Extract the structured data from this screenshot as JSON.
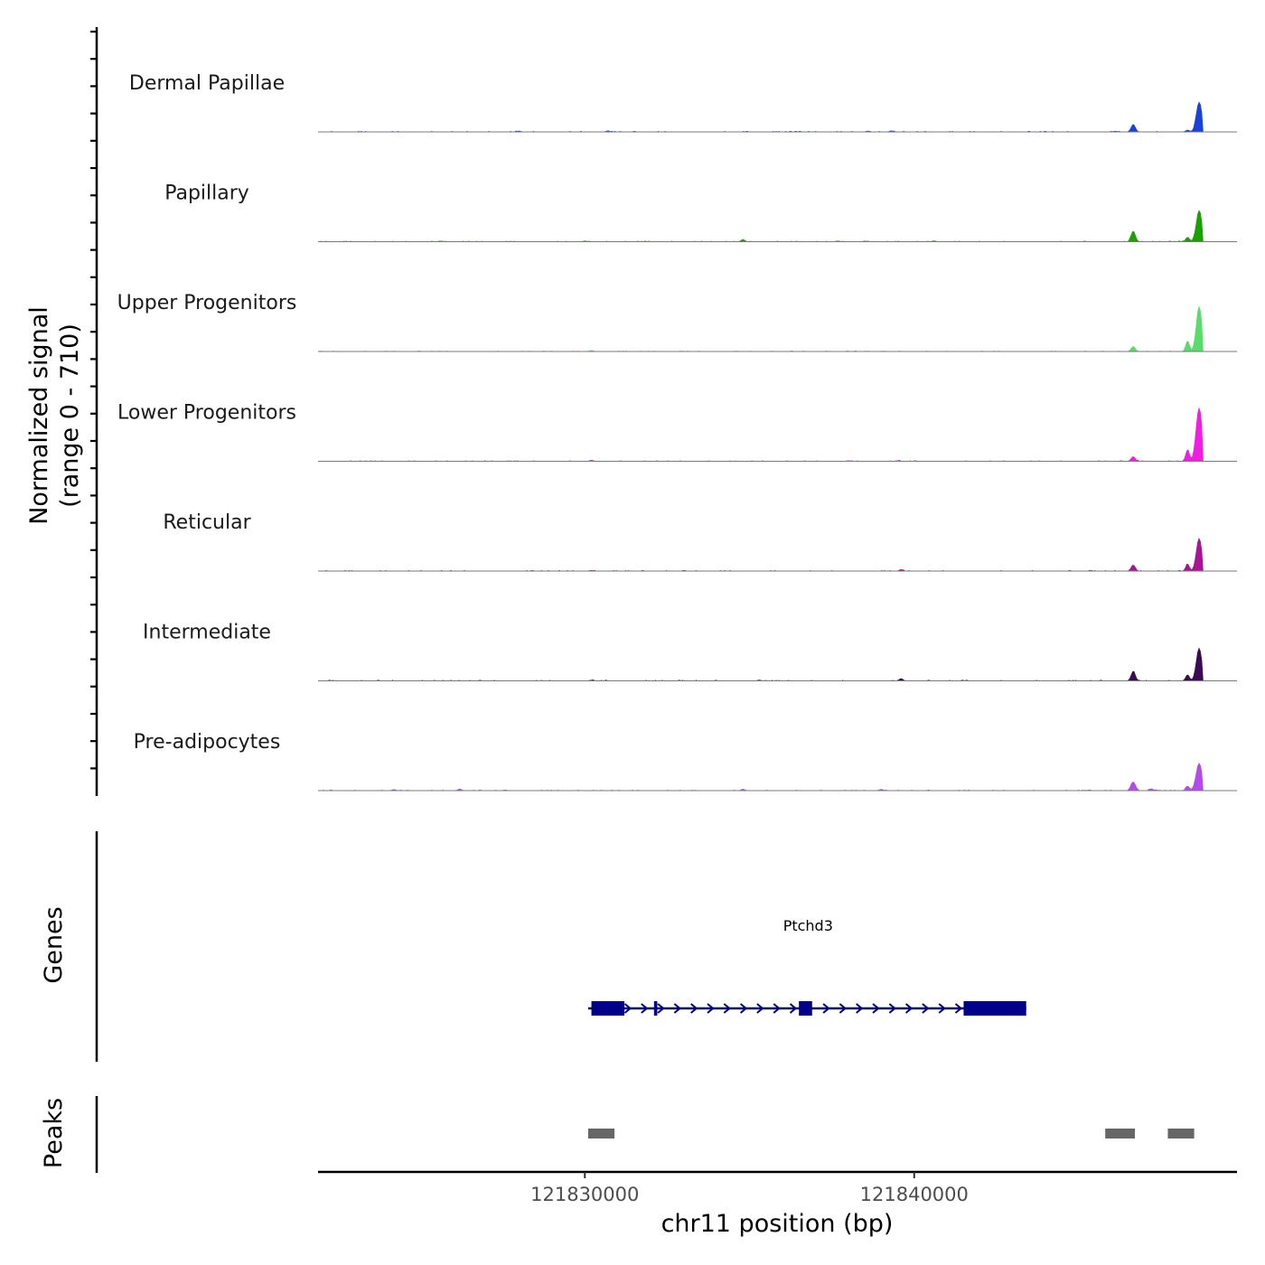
{
  "chart_data": {
    "type": "area",
    "chromosome": "chr11",
    "region": [
      121821900,
      121849800
    ],
    "xlabel": "chr11 position (bp)",
    "ylabel": "Normalized signal",
    "ylabel_range": "(range 0 - 710)",
    "ylim": [
      0,
      710
    ],
    "x_ticks": [
      {
        "value": 121830000,
        "label": "121830000"
      },
      {
        "value": 121840000,
        "label": "121840000"
      }
    ],
    "tracks": [
      {
        "name": "Dermal Papillae",
        "color": "#1742db",
        "peaks": [
          [
            121846650,
            100,
            90
          ],
          [
            121848650,
            390,
            120
          ]
        ],
        "bumps": [
          [
            121828000,
            12
          ],
          [
            121830700,
            15
          ],
          [
            121838600,
            12
          ],
          [
            121839300,
            14
          ],
          [
            121846100,
            10
          ],
          [
            121848300,
            25
          ]
        ]
      },
      {
        "name": "Papillary",
        "color": "#1aa000",
        "peaks": [
          [
            121846650,
            140,
            90
          ],
          [
            121848650,
            410,
            120
          ]
        ],
        "bumps": [
          [
            121830000,
            10
          ],
          [
            121834800,
            30
          ],
          [
            121838500,
            9
          ],
          [
            121840600,
            12
          ],
          [
            121848300,
            60
          ]
        ]
      },
      {
        "name": "Upper Progenitors",
        "color": "#58dd6a",
        "peaks": [
          [
            121846650,
            65,
            90
          ],
          [
            121848650,
            590,
            120
          ]
        ],
        "bumps": [
          [
            121830200,
            15
          ],
          [
            121834600,
            6
          ],
          [
            121848300,
            140
          ]
        ]
      },
      {
        "name": "Lower Progenitors",
        "color": "#f01fe0",
        "peaks": [
          [
            121846650,
            60,
            90
          ],
          [
            121848650,
            700,
            130
          ]
        ],
        "bumps": [
          [
            121830200,
            15
          ],
          [
            121838000,
            8
          ],
          [
            121839500,
            10
          ],
          [
            121848300,
            150
          ]
        ]
      },
      {
        "name": "Reticular",
        "color": "#a51596",
        "peaks": [
          [
            121846650,
            80,
            90
          ],
          [
            121848650,
            430,
            120
          ]
        ],
        "bumps": [
          [
            121828400,
            8
          ],
          [
            121830200,
            10
          ],
          [
            121839600,
            20
          ],
          [
            121848300,
            90
          ]
        ]
      },
      {
        "name": "Intermediate",
        "color": "#3a0a55",
        "peaks": [
          [
            121846650,
            125,
            90
          ],
          [
            121848650,
            430,
            120
          ]
        ],
        "bumps": [
          [
            121830200,
            10
          ],
          [
            121835300,
            10
          ],
          [
            121839600,
            30
          ],
          [
            121848300,
            80
          ]
        ]
      },
      {
        "name": "Pre-adipocytes",
        "color": "#b44ae8",
        "peaks": [
          [
            121846650,
            115,
            100
          ],
          [
            121848650,
            360,
            130
          ]
        ],
        "bumps": [
          [
            121824200,
            15
          ],
          [
            121826200,
            22
          ],
          [
            121834800,
            20
          ],
          [
            121839000,
            18
          ],
          [
            121847200,
            25
          ],
          [
            121848300,
            60
          ]
        ]
      }
    ],
    "gene_track": {
      "title": "Genes",
      "color": "#00008b",
      "gene": {
        "name": "Ptchd3",
        "start": 121830100,
        "end": 121843400,
        "strand": "+",
        "exons": [
          [
            121830200,
            121831200
          ],
          [
            121832100,
            121832200
          ],
          [
            121836500,
            121836900
          ],
          [
            121841500,
            121843400
          ]
        ]
      }
    },
    "peak_track": {
      "title": "Peaks",
      "color": "#666666",
      "peaks": [
        [
          121830100,
          121830900
        ],
        [
          121845800,
          121846700
        ],
        [
          121847700,
          121848500
        ]
      ]
    }
  }
}
